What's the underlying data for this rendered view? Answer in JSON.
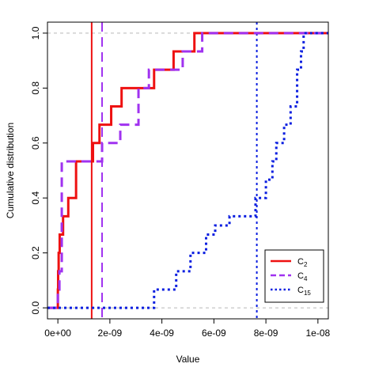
{
  "chart_data": {
    "type": "line",
    "subtype": "empirical cumulative distribution (step)",
    "xlabel": "Value",
    "ylabel": "Cumulative distribution",
    "xlim": [
      -4e-10,
      1.04e-08
    ],
    "ylim": [
      -0.04,
      1.04
    ],
    "x_ticks": [
      0,
      2e-09,
      4e-09,
      6e-09,
      8e-09,
      1e-08
    ],
    "x_tick_labels": [
      "0e+00",
      "2e-09",
      "4e-09",
      "6e-09",
      "8e-09",
      "1e-08"
    ],
    "y_ticks": [
      0.0,
      0.2,
      0.4,
      0.6,
      0.8,
      1.0
    ],
    "y_tick_labels": [
      "0.0",
      "0.2",
      "0.4",
      "0.6",
      "0.8",
      "1.0"
    ],
    "reference_lines_y": [
      0.0,
      1.0
    ],
    "grid": false,
    "legend_position": "bottom-right",
    "series": [
      {
        "name": "C",
        "subscript": "2",
        "color": "#ee1111",
        "style": "solid",
        "mean": 1.3e-09,
        "step_x": [
          0.0,
          1e-11,
          3e-11,
          7e-11,
          2e-10,
          4e-10,
          7e-10,
          1.35e-09,
          1.6e-09,
          2.05e-09,
          2.45e-09,
          3.7e-09,
          4.45e-09,
          5.25e-09,
          6.6e-09
        ],
        "step_y": [
          0.0667,
          0.1333,
          0.2,
          0.2667,
          0.3333,
          0.4,
          0.5333,
          0.6,
          0.6667,
          0.7333,
          0.8,
          0.8667,
          0.9333,
          1.0,
          1.0
        ]
      },
      {
        "name": "C",
        "subscript": "4",
        "color": "#a032f0",
        "style": "dashed",
        "mean": 1.7e-09,
        "step_x": [
          0.0,
          6e-11,
          1.5e-10,
          4e-10,
          1.6e-09,
          1.7e-09,
          2.4e-09,
          3.1e-09,
          3.5e-09,
          4.8e-09,
          5.55e-09
        ],
        "step_y": [
          0.0667,
          0.1333,
          0.5333,
          0.5333,
          0.5333,
          0.6,
          0.6667,
          0.8,
          0.8667,
          0.9333,
          1.0
        ]
      },
      {
        "name": "C",
        "subscript": "15",
        "color": "#0a1ee0",
        "style": "dotted",
        "mean": 7.65e-09,
        "step_x": [
          2.85e-09,
          3.7e-09,
          4.55e-09,
          5.1e-09,
          5.7e-09,
          6.05e-09,
          6.6e-09,
          7.6e-09,
          8e-09,
          8.25e-09,
          8.4e-09,
          8.7e-09,
          8.95e-09,
          9.2e-09,
          9.35e-09,
          9.45e-09
        ],
        "step_y": [
          0.0,
          0.0667,
          0.1333,
          0.2,
          0.2667,
          0.3,
          0.3333,
          0.4,
          0.4667,
          0.5333,
          0.6,
          0.6667,
          0.7333,
          0.8667,
          0.9333,
          1.0
        ]
      }
    ]
  }
}
